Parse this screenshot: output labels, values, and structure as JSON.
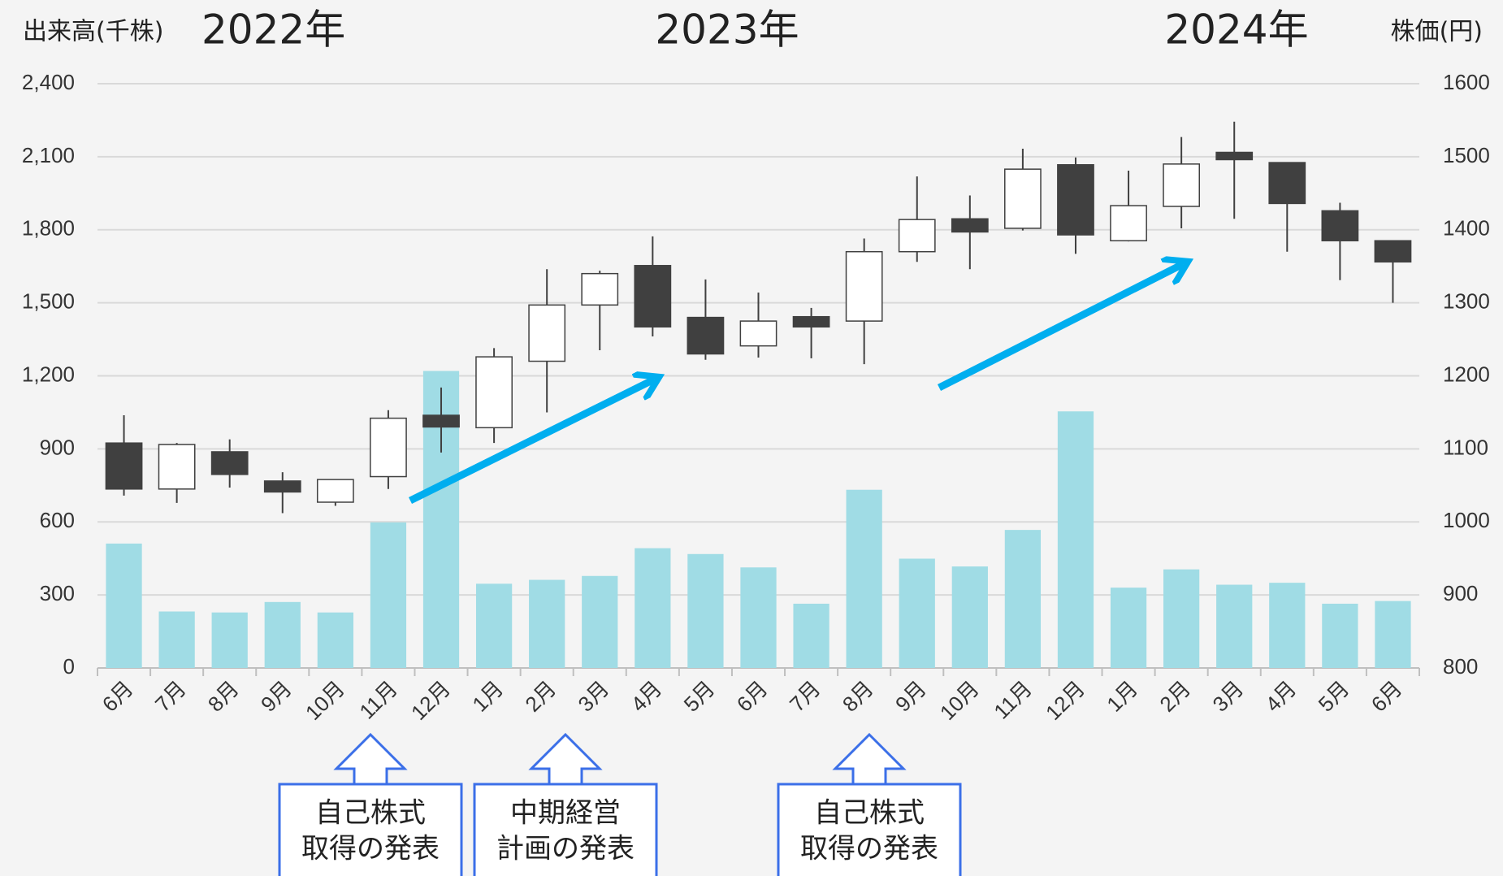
{
  "chart_data": {
    "type": "candlestick",
    "left_axis_label": "出来高(千株)",
    "right_axis_label": "株価(円)",
    "years": [
      "2022年",
      "2023年",
      "2024年"
    ],
    "categories": [
      "6月",
      "7月",
      "8月",
      "9月",
      "10月",
      "11月",
      "12月",
      "1月",
      "2月",
      "3月",
      "4月",
      "5月",
      "6月",
      "7月",
      "8月",
      "9月",
      "10月",
      "11月",
      "12月",
      "1月",
      "2月",
      "3月",
      "4月",
      "5月",
      "6月"
    ],
    "volume": {
      "color": "#a0dce5",
      "values": [
        511,
        232,
        228,
        271,
        228,
        598,
        1220,
        346,
        362,
        378,
        492,
        468,
        413,
        264,
        732,
        449,
        417,
        567,
        1054,
        330,
        405,
        342,
        350,
        264,
        275
      ]
    },
    "price": {
      "axis": "y2",
      "up_color": "#ffffff",
      "down_color": "#404040",
      "open": [
        1108,
        1045,
        1096,
        1056,
        1027,
        1062,
        1146,
        1129,
        1220,
        1297,
        1351,
        1280,
        1241,
        1281,
        1275,
        1370,
        1415,
        1402,
        1489,
        1385,
        1432,
        1506,
        1492,
        1426,
        1385
      ],
      "high": [
        1146,
        1108,
        1113,
        1068,
        1058,
        1153,
        1184,
        1238,
        1346,
        1344,
        1391,
        1332,
        1314,
        1293,
        1388,
        1473,
        1447,
        1511,
        1499,
        1481,
        1527,
        1548,
        1492,
        1437,
        1385
      ],
      "low": [
        1036,
        1026,
        1047,
        1012,
        1022,
        1045,
        1095,
        1108,
        1150,
        1235,
        1254,
        1222,
        1225,
        1224,
        1216,
        1356,
        1346,
        1399,
        1367,
        1384,
        1402,
        1415,
        1370,
        1331,
        1300
      ],
      "close": [
        1045,
        1106,
        1065,
        1041,
        1058,
        1142,
        1130,
        1226,
        1297,
        1340,
        1267,
        1230,
        1275,
        1267,
        1370,
        1414,
        1397,
        1483,
        1393,
        1433,
        1490,
        1496,
        1436,
        1385,
        1356
      ]
    },
    "ylim": [
      0,
      2400
    ],
    "yticks": [
      0,
      300,
      600,
      900,
      {
        "value": 1200,
        "label": "1,200"
      },
      {
        "value": 1500,
        "label": "1,500"
      },
      {
        "value": 1800,
        "label": "1,800"
      },
      {
        "value": 2100,
        "label": "2,100"
      },
      {
        "value": 2400,
        "label": "2,400"
      }
    ],
    "y2lim": [
      800,
      1600
    ],
    "y2ticks": [
      800,
      900,
      1000,
      1100,
      1200,
      1300,
      1400,
      1500,
      1600
    ],
    "grid": true,
    "annotations": [
      {
        "lines": [
          "自己株式",
          "取得の発表"
        ]
      },
      {
        "lines": [
          "中期経営",
          "計画の発表"
        ]
      },
      {
        "lines": [
          "自己株式",
          "取得の発表"
        ]
      }
    ]
  }
}
